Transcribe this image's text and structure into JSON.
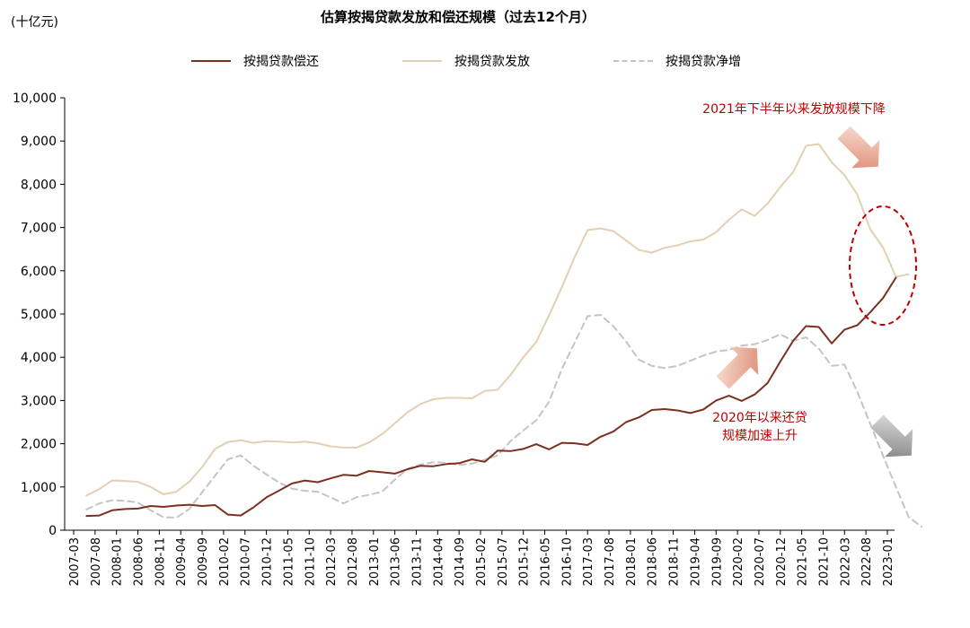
{
  "unit_label": "(十亿元)",
  "annotations": {
    "top": "2021年下半年以来发放规模下降",
    "middle_line1": "2020年以来还贷",
    "middle_line2": "规模加速上升"
  },
  "colors": {
    "repayment": "#7b3122",
    "issuance": "#e3cfb4",
    "net": "#c4c4c4",
    "annotation": "#c00000",
    "arrow_red": "#d9826a",
    "arrow_gray": "#8c8c8c"
  },
  "chart_data": {
    "type": "line",
    "title": "估算按揭贷款发放和偿还规模（过去12个月）",
    "ylabel": "(十亿元)",
    "xlabel": "",
    "ylim": [
      0,
      10000
    ],
    "yticks": [
      0,
      1000,
      2000,
      3000,
      4000,
      5000,
      6000,
      7000,
      8000,
      9000,
      10000
    ],
    "ytick_labels": [
      "0",
      "1,000",
      "2,000",
      "3,000",
      "4,000",
      "5,000",
      "6,000",
      "7,000",
      "8,000",
      "9,000",
      "10,000"
    ],
    "xtick_labels": [
      "2007-03",
      "2007-08",
      "2008-01",
      "2008-06",
      "2008-11",
      "2009-04",
      "2009-09",
      "2010-02",
      "2010-07",
      "2010-12",
      "2011-05",
      "2011-10",
      "2012-03",
      "2012-08",
      "2013-01",
      "2013-06",
      "2013-11",
      "2014-04",
      "2014-09",
      "2015-02",
      "2015-07",
      "2015-12",
      "2016-05",
      "2016-10",
      "2017-03",
      "2017-08",
      "2018-01",
      "2018-06",
      "2018-11",
      "2019-04",
      "2019-09",
      "2020-02",
      "2020-07",
      "2020-12",
      "2021-05",
      "2021-10",
      "2022-03",
      "2022-08",
      "2023-01"
    ],
    "grid": false,
    "legend_position": "top",
    "series": [
      {
        "name": "按揭贷款偿还",
        "style": "solid",
        "points": [
          [
            "2007-06",
            330
          ],
          [
            "2007-09",
            340
          ],
          [
            "2007-12",
            460
          ],
          [
            "2008-03",
            490
          ],
          [
            "2008-06",
            500
          ],
          [
            "2008-09",
            560
          ],
          [
            "2008-12",
            540
          ],
          [
            "2009-03",
            570
          ],
          [
            "2009-06",
            590
          ],
          [
            "2009-09",
            560
          ],
          [
            "2009-12",
            580
          ],
          [
            "2010-03",
            360
          ],
          [
            "2010-06",
            340
          ],
          [
            "2010-09",
            530
          ],
          [
            "2010-12",
            760
          ],
          [
            "2011-03",
            920
          ],
          [
            "2011-06",
            1080
          ],
          [
            "2011-09",
            1150
          ],
          [
            "2011-12",
            1110
          ],
          [
            "2012-03",
            1200
          ],
          [
            "2012-06",
            1280
          ],
          [
            "2012-09",
            1260
          ],
          [
            "2012-12",
            1370
          ],
          [
            "2013-03",
            1340
          ],
          [
            "2013-06",
            1310
          ],
          [
            "2013-09",
            1410
          ],
          [
            "2013-12",
            1490
          ],
          [
            "2014-03",
            1480
          ],
          [
            "2014-06",
            1530
          ],
          [
            "2014-09",
            1550
          ],
          [
            "2014-12",
            1640
          ],
          [
            "2015-03",
            1580
          ],
          [
            "2015-06",
            1840
          ],
          [
            "2015-09",
            1830
          ],
          [
            "2015-12",
            1880
          ],
          [
            "2016-03",
            1990
          ],
          [
            "2016-06",
            1870
          ],
          [
            "2016-09",
            2020
          ],
          [
            "2016-12",
            2010
          ],
          [
            "2017-03",
            1970
          ],
          [
            "2017-06",
            2160
          ],
          [
            "2017-09",
            2280
          ],
          [
            "2017-12",
            2500
          ],
          [
            "2018-03",
            2610
          ],
          [
            "2018-06",
            2780
          ],
          [
            "2018-09",
            2800
          ],
          [
            "2018-12",
            2770
          ],
          [
            "2019-03",
            2710
          ],
          [
            "2019-06",
            2790
          ],
          [
            "2019-09",
            3000
          ],
          [
            "2019-12",
            3110
          ],
          [
            "2020-03",
            2990
          ],
          [
            "2020-06",
            3140
          ],
          [
            "2020-09",
            3400
          ],
          [
            "2020-12",
            3900
          ],
          [
            "2021-03",
            4380
          ],
          [
            "2021-06",
            4720
          ],
          [
            "2021-09",
            4700
          ],
          [
            "2021-12",
            4320
          ],
          [
            "2022-03",
            4640
          ],
          [
            "2022-06",
            4740
          ],
          [
            "2022-09",
            5040
          ],
          [
            "2022-12",
            5370
          ],
          [
            "2023-03",
            5840
          ]
        ]
      },
      {
        "name": "按揭贷款发放",
        "style": "solid",
        "points": [
          [
            "2007-06",
            800
          ],
          [
            "2007-09",
            950
          ],
          [
            "2007-12",
            1150
          ],
          [
            "2008-03",
            1140
          ],
          [
            "2008-06",
            1120
          ],
          [
            "2008-09",
            1000
          ],
          [
            "2008-12",
            830
          ],
          [
            "2009-03",
            890
          ],
          [
            "2009-06",
            1120
          ],
          [
            "2009-09",
            1460
          ],
          [
            "2009-12",
            1880
          ],
          [
            "2010-03",
            2040
          ],
          [
            "2010-06",
            2080
          ],
          [
            "2010-09",
            2020
          ],
          [
            "2010-12",
            2060
          ],
          [
            "2011-03",
            2050
          ],
          [
            "2011-06",
            2030
          ],
          [
            "2011-09",
            2050
          ],
          [
            "2011-12",
            2010
          ],
          [
            "2012-03",
            1940
          ],
          [
            "2012-06",
            1910
          ],
          [
            "2012-09",
            1910
          ],
          [
            "2012-12",
            2030
          ],
          [
            "2013-03",
            2220
          ],
          [
            "2013-06",
            2470
          ],
          [
            "2013-09",
            2730
          ],
          [
            "2013-12",
            2920
          ],
          [
            "2014-03",
            3030
          ],
          [
            "2014-06",
            3060
          ],
          [
            "2014-09",
            3060
          ],
          [
            "2014-12",
            3050
          ],
          [
            "2015-03",
            3220
          ],
          [
            "2015-06",
            3250
          ],
          [
            "2015-09",
            3590
          ],
          [
            "2015-12",
            4000
          ],
          [
            "2016-03",
            4350
          ],
          [
            "2016-06",
            4970
          ],
          [
            "2016-09",
            5620
          ],
          [
            "2016-12",
            6320
          ],
          [
            "2017-03",
            6940
          ],
          [
            "2017-06",
            6980
          ],
          [
            "2017-09",
            6920
          ],
          [
            "2017-12",
            6700
          ],
          [
            "2018-03",
            6480
          ],
          [
            "2018-06",
            6420
          ],
          [
            "2018-09",
            6530
          ],
          [
            "2018-12",
            6590
          ],
          [
            "2019-03",
            6680
          ],
          [
            "2019-06",
            6720
          ],
          [
            "2019-09",
            6890
          ],
          [
            "2019-12",
            7180
          ],
          [
            "2020-03",
            7420
          ],
          [
            "2020-06",
            7270
          ],
          [
            "2020-09",
            7550
          ],
          [
            "2020-12",
            7940
          ],
          [
            "2021-03",
            8280
          ],
          [
            "2021-06",
            8890
          ],
          [
            "2021-09",
            8930
          ],
          [
            "2021-12",
            8510
          ],
          [
            "2022-03",
            8210
          ],
          [
            "2022-06",
            7760
          ],
          [
            "2022-09",
            6960
          ],
          [
            "2022-12",
            6540
          ],
          [
            "2023-03",
            5860
          ],
          [
            "2023-06",
            5920
          ]
        ]
      },
      {
        "name": "按揭贷款净增",
        "style": "dashed",
        "points": [
          [
            "2007-06",
            480
          ],
          [
            "2007-09",
            620
          ],
          [
            "2007-12",
            690
          ],
          [
            "2008-03",
            680
          ],
          [
            "2008-06",
            640
          ],
          [
            "2008-09",
            460
          ],
          [
            "2008-12",
            300
          ],
          [
            "2009-03",
            290
          ],
          [
            "2009-06",
            490
          ],
          [
            "2009-09",
            880
          ],
          [
            "2009-12",
            1260
          ],
          [
            "2010-03",
            1640
          ],
          [
            "2010-06",
            1730
          ],
          [
            "2010-09",
            1490
          ],
          [
            "2010-12",
            1290
          ],
          [
            "2011-03",
            1100
          ],
          [
            "2011-06",
            960
          ],
          [
            "2011-09",
            910
          ],
          [
            "2011-12",
            890
          ],
          [
            "2012-03",
            760
          ],
          [
            "2012-06",
            620
          ],
          [
            "2012-09",
            760
          ],
          [
            "2012-12",
            820
          ],
          [
            "2013-03",
            890
          ],
          [
            "2013-06",
            1170
          ],
          [
            "2013-09",
            1420
          ],
          [
            "2013-12",
            1520
          ],
          [
            "2014-03",
            1570
          ],
          [
            "2014-06",
            1560
          ],
          [
            "2014-09",
            1510
          ],
          [
            "2014-12",
            1540
          ],
          [
            "2015-03",
            1630
          ],
          [
            "2015-06",
            1730
          ],
          [
            "2015-09",
            2060
          ],
          [
            "2015-12",
            2310
          ],
          [
            "2016-03",
            2540
          ],
          [
            "2016-06",
            2970
          ],
          [
            "2016-09",
            3730
          ],
          [
            "2016-12",
            4340
          ],
          [
            "2017-03",
            4950
          ],
          [
            "2017-06",
            4980
          ],
          [
            "2017-09",
            4720
          ],
          [
            "2017-12",
            4360
          ],
          [
            "2018-03",
            3940
          ],
          [
            "2018-06",
            3800
          ],
          [
            "2018-09",
            3750
          ],
          [
            "2018-12",
            3800
          ],
          [
            "2019-03",
            3920
          ],
          [
            "2019-06",
            4040
          ],
          [
            "2019-09",
            4130
          ],
          [
            "2019-12",
            4170
          ],
          [
            "2020-03",
            4270
          ],
          [
            "2020-06",
            4300
          ],
          [
            "2020-09",
            4400
          ],
          [
            "2020-12",
            4530
          ],
          [
            "2021-03",
            4380
          ],
          [
            "2021-06",
            4460
          ],
          [
            "2021-09",
            4200
          ],
          [
            "2021-12",
            3800
          ],
          [
            "2022-03",
            3830
          ],
          [
            "2022-06",
            3200
          ],
          [
            "2022-09",
            2460
          ],
          [
            "2022-12",
            1720
          ],
          [
            "2023-03",
            1000
          ],
          [
            "2023-06",
            300
          ],
          [
            "2023-09",
            80
          ]
        ]
      }
    ]
  }
}
